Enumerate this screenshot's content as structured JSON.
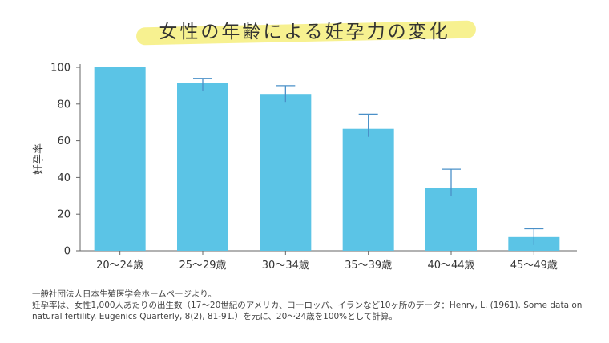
{
  "chart_data": {
    "type": "bar",
    "title": "女性の年齢による妊孕力の変化",
    "ylabel": "妊孕率",
    "xlabel": "",
    "ylim": [
      0,
      100
    ],
    "yticks": [
      "0",
      "20",
      "40",
      "60",
      "80",
      "100"
    ],
    "categories": [
      "20〜24歳",
      "25〜29歳",
      "30〜34歳",
      "35〜39歳",
      "40〜44歳",
      "45〜49歳"
    ],
    "values": [
      100,
      91.5,
      85.5,
      66.5,
      34.5,
      7.5
    ],
    "error_upper": [
      100,
      94,
      90,
      74.5,
      44.5,
      12
    ],
    "bar_color": "#5bc4e6",
    "highlight_color": "#f6ef7c"
  },
  "footnote": {
    "lines": [
      "一般社団法人日本生殖医学会ホームページより。",
      "妊孕率は、女性1,000人あたりの出生数（17〜20世紀のアメリカ、ヨーロッパ、イランなど10ヶ所のデータ：Henry, L. (1961). Some data on",
      "natural fertility. Eugenics Quarterly, 8(2), 81-91.）を元に、20〜24歳を100%として計算。"
    ]
  }
}
